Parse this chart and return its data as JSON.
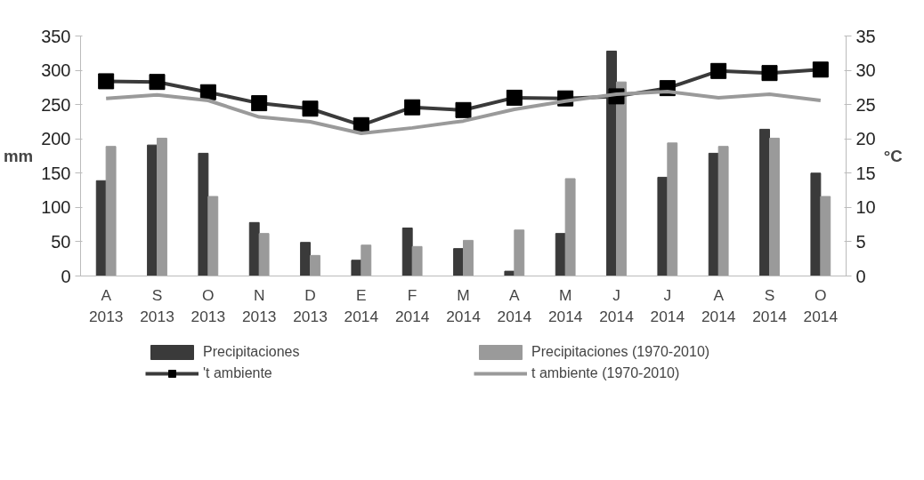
{
  "chart_data": {
    "type": "bar",
    "ylabel": "mm",
    "y2label": "°C",
    "categories": [
      "A\n2013",
      "S\n2013",
      "O\n2013",
      "N\n2013",
      "D\n2013",
      "E\n2014",
      "F\n2014",
      "M\n2014",
      "A\n2014",
      "M\n2014",
      "J\n2014",
      "J\n2014",
      "A\n2014",
      "S\n2014",
      "O\n2014"
    ],
    "series": [
      {
        "name": "Precipitaciones",
        "color": "#3a3a3a",
        "values": [
          139,
          191,
          179,
          78,
          49,
          23,
          70,
          40,
          7,
          62,
          328,
          144,
          179,
          214,
          150
        ]
      },
      {
        "name": "Precipitaciones (1970-2010)",
        "color": "#9a9a9a",
        "values": [
          189,
          201,
          116,
          62,
          30,
          45,
          43,
          52,
          67,
          142,
          283,
          194,
          189,
          201,
          116
        ]
      },
      {
        "name": "'t ambiente",
        "type": "line",
        "axis": "y2",
        "marker": "square",
        "color": "#3a3a3a",
        "values": [
          28.4,
          28.3,
          26.8,
          25.2,
          24.4,
          22.0,
          24.6,
          24.2,
          26.0,
          25.9,
          26.2,
          27.4,
          29.9,
          29.6,
          30.1
        ]
      },
      {
        "name": "t ambiente (1970-2010)",
        "type": "line",
        "axis": "y2",
        "marker": "none",
        "color": "#9a9a9a",
        "values": [
          25.9,
          26.4,
          25.6,
          23.2,
          22.5,
          20.8,
          21.6,
          22.6,
          24.3,
          25.5,
          26.5,
          26.9,
          26.0,
          26.5,
          25.6
        ]
      }
    ],
    "ylim": [
      0,
      350
    ],
    "yticks": [
      0,
      50,
      100,
      150,
      200,
      250,
      300,
      350
    ],
    "y2lim": [
      0,
      35
    ],
    "y2ticks": [
      0,
      5,
      10,
      15,
      20,
      25,
      30,
      35
    ],
    "grid": false,
    "legend": "bottom"
  }
}
